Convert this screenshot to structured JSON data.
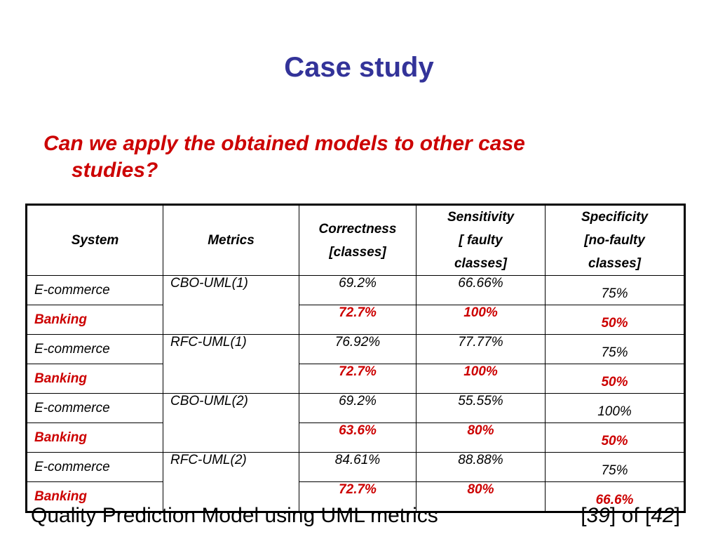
{
  "slide": {
    "title": "Case study",
    "question_line1": "Can we apply the obtained models to other case",
    "question_line2": "studies?"
  },
  "table": {
    "headers": {
      "system": "System",
      "metrics": "Metrics",
      "correctness_1": "Correctness",
      "correctness_2": "[classes]",
      "sensitivity_1": "Sensitivity",
      "sensitivity_2": "[ faulty",
      "sensitivity_3": "classes]",
      "specificity_1": "Specificity",
      "specificity_2": "[no-faulty",
      "specificity_3": "classes]"
    },
    "groups": [
      {
        "metric": "CBO-UML(1)",
        "rows": [
          {
            "system": "E-commerce",
            "correctness": "69.2%",
            "sensitivity": "66.66%",
            "specificity": "75%"
          },
          {
            "system": "Banking",
            "correctness": "72.7%",
            "sensitivity": "100%",
            "specificity": "50%"
          }
        ]
      },
      {
        "metric": "RFC-UML(1)",
        "rows": [
          {
            "system": "E-commerce",
            "correctness": "76.92%",
            "sensitivity": "77.77%",
            "specificity": "75%"
          },
          {
            "system": "Banking",
            "correctness": "72.7%",
            "sensitivity": "100%",
            "specificity": "50%"
          }
        ]
      },
      {
        "metric": "CBO-UML(2)",
        "rows": [
          {
            "system": "E-commerce",
            "correctness": "69.2%",
            "sensitivity": "55.55%",
            "specificity": "100%"
          },
          {
            "system": "Banking",
            "correctness": "63.6%",
            "sensitivity": "80%",
            "specificity": "50%"
          }
        ]
      },
      {
        "metric": "RFC-UML(2)",
        "rows": [
          {
            "system": "E-commerce",
            "correctness": "84.61%",
            "sensitivity": "88.88%",
            "specificity": "75%"
          },
          {
            "system": "Banking",
            "correctness": "72.7%",
            "sensitivity": "80%",
            "specificity": "66.6%"
          }
        ]
      }
    ]
  },
  "footer": {
    "caption": "Quality Prediction Model using UML metrics",
    "page_open": "[",
    "page_current": "39",
    "page_mid": "] of [",
    "page_total": "42",
    "page_close": "]"
  },
  "colors": {
    "title": "#333399",
    "accent_red": "#cc0000"
  }
}
